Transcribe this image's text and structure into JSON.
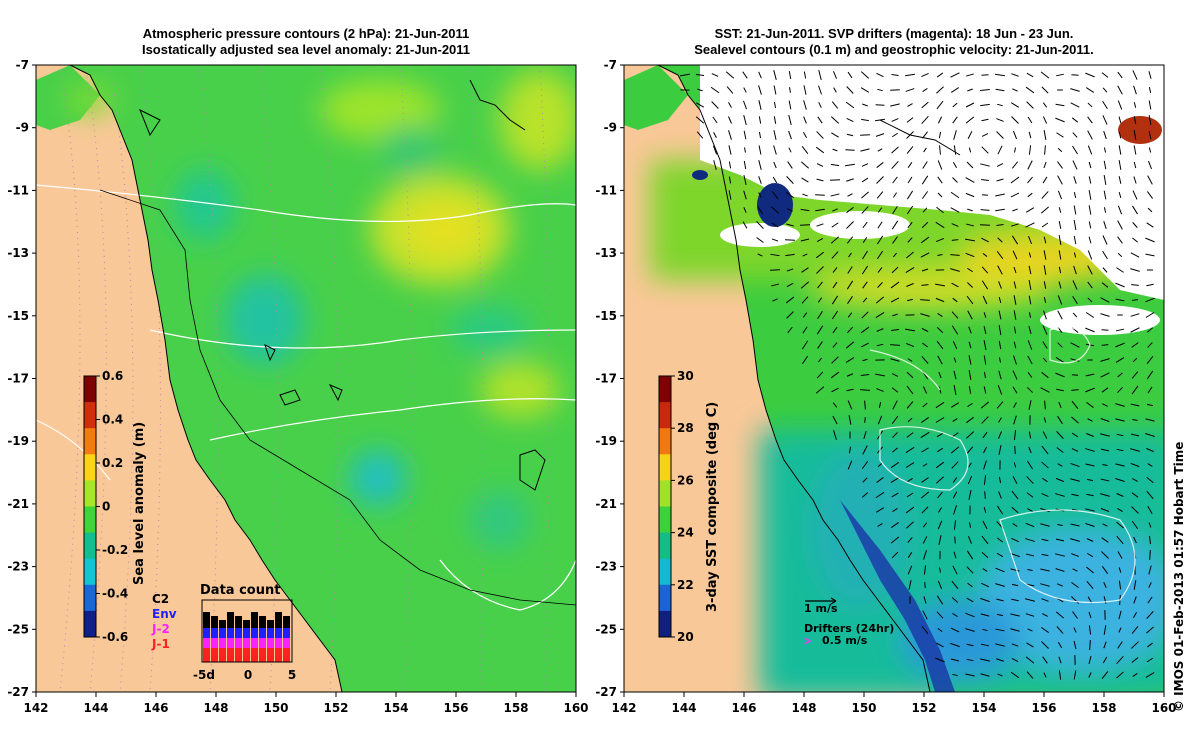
{
  "left_panel": {
    "title_line1": "Atmospheric pressure contours (2 hPa): 21-Jun-2011",
    "title_line2": "Isostatically adjusted sea level anomaly: 21-Jun-2011",
    "colorbar": {
      "label": "Sea level anomaly (m)",
      "ticks": [
        "0.6",
        "0.4",
        "0.2",
        "0",
        "-0.2",
        "-0.4",
        "-0.6"
      ],
      "colors": [
        "#7f0000",
        "#d22e0a",
        "#f47c0c",
        "#f9d514",
        "#a6e626",
        "#3fd43a",
        "#10bf8f",
        "#10c5d6",
        "#1868d8",
        "#10208a"
      ]
    },
    "data_count": {
      "title": "Data count",
      "satellites": [
        {
          "name": "C2",
          "color": "#000000"
        },
        {
          "name": "Env",
          "color": "#2020ff"
        },
        {
          "name": "J-2",
          "color": "#ff20ff"
        },
        {
          "name": "J-1",
          "color": "#ff2020"
        }
      ],
      "xticks": [
        "-5d",
        "0",
        "5"
      ]
    }
  },
  "right_panel": {
    "title_line1": "SST: 21-Jun-2011. SVP drifters (magenta): 18 Jun - 23 Jun.",
    "title_line2": "Sealevel contours (0.1 m) and geostrophic velocity: 21-Jun-2011.",
    "colorbar": {
      "label": "3-day SST composite (deg C)",
      "ticks": [
        "30",
        "28",
        "26",
        "24",
        "22",
        "20"
      ],
      "colors": [
        "#7f0000",
        "#c8280c",
        "#f07810",
        "#f6d21a",
        "#a0e22a",
        "#3cd23c",
        "#16bc86",
        "#14b8d0",
        "#1a64d6",
        "#10207e"
      ]
    },
    "velocity_key": "1 m/s",
    "drifters_key": "Drifters (24hr)",
    "drifters_speed": "0.5 m/s"
  },
  "axes": {
    "lon_ticks": [
      "142",
      "144",
      "146",
      "148",
      "150",
      "152",
      "154",
      "156",
      "158",
      "160"
    ],
    "lat_ticks": [
      "-7",
      "-9",
      "-11",
      "-13",
      "-15",
      "-17",
      "-19",
      "-21",
      "-23",
      "-25",
      "-27"
    ]
  },
  "credit": "© IMOS 01-Feb-2013 01:57 Hobart Time",
  "colors": {
    "land": "#f9c898",
    "ocean_sla": "#48d04a",
    "cloud": "#ffffff",
    "frame": "#000000"
  }
}
